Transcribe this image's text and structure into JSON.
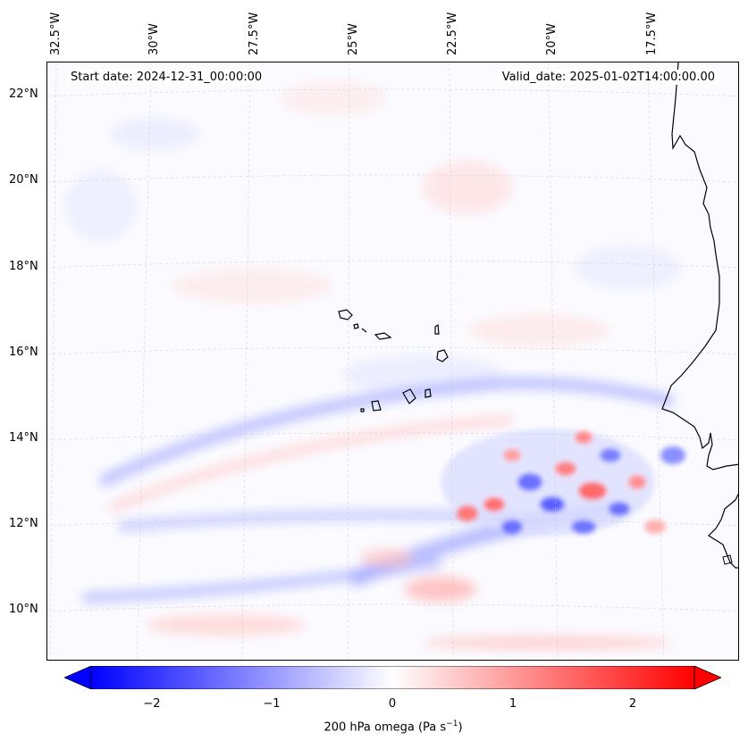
{
  "header": {
    "start_date": "Start date: 2024-12-31_00:00:00",
    "valid_date": "Valid_date: 2025-01-02T14:00:00.00"
  },
  "longitude_labels": [
    "32.5°W",
    "30°W",
    "27.5°W",
    "25°W",
    "22.5°W",
    "20°W",
    "17.5°W"
  ],
  "latitude_labels": [
    "22°N",
    "20°N",
    "18°N",
    "16°N",
    "14°N",
    "12°N",
    "10°N"
  ],
  "colorbar": {
    "label_main": "200 hPa omega (Pa s",
    "label_exp": "−1",
    "label_close": ")",
    "ticks": [
      "−2",
      "−1",
      "0",
      "1",
      "2"
    ],
    "range": [
      -2.75,
      2.75
    ],
    "colors": {
      "negative": "#0000ff",
      "zero": "#ffffff",
      "positive": "#ff0000"
    }
  },
  "map": {
    "coastline_color": "#000000",
    "features": [
      "cape-verde-islands",
      "west-african-coast"
    ]
  }
}
